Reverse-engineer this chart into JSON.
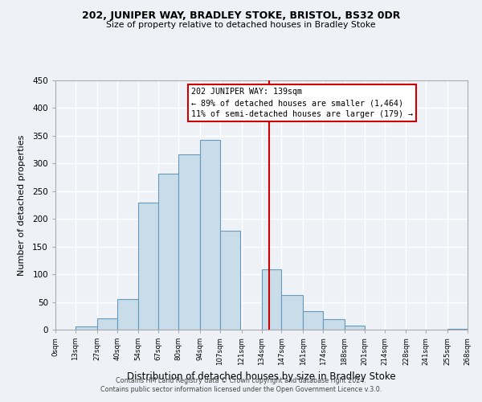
{
  "title1": "202, JUNIPER WAY, BRADLEY STOKE, BRISTOL, BS32 0DR",
  "title2": "Size of property relative to detached houses in Bradley Stoke",
  "xlabel": "Distribution of detached houses by size in Bradley Stoke",
  "ylabel": "Number of detached properties",
  "footer1": "Contains HM Land Registry data © Crown copyright and database right 2024.",
  "footer2": "Contains public sector information licensed under the Open Government Licence v.3.0.",
  "bar_left_edges": [
    0,
    13,
    27,
    40,
    54,
    67,
    80,
    94,
    107,
    121,
    134,
    147,
    161,
    174,
    188,
    201,
    214,
    228,
    241,
    255
  ],
  "bar_heights": [
    0,
    6,
    21,
    55,
    230,
    281,
    317,
    342,
    178,
    0,
    109,
    62,
    33,
    19,
    7,
    0,
    0,
    0,
    0,
    2
  ],
  "bar_widths": [
    13,
    14,
    13,
    14,
    13,
    13,
    14,
    13,
    13,
    13,
    13,
    14,
    13,
    14,
    13,
    13,
    14,
    13,
    14,
    13
  ],
  "bar_color": "#c8dcea",
  "bar_edgecolor": "#6699bb",
  "vline_x": 139,
  "vline_color": "#cc0000",
  "annotation_title": "202 JUNIPER WAY: 139sqm",
  "annotation_line1": "← 89% of detached houses are smaller (1,464)",
  "annotation_line2": "11% of semi-detached houses are larger (179) →",
  "xlim": [
    0,
    268
  ],
  "ylim": [
    0,
    450
  ],
  "xtick_positions": [
    0,
    13,
    27,
    40,
    54,
    67,
    80,
    94,
    107,
    121,
    134,
    147,
    161,
    174,
    188,
    201,
    214,
    228,
    241,
    255,
    268
  ],
  "xtick_labels": [
    "0sqm",
    "13sqm",
    "27sqm",
    "40sqm",
    "54sqm",
    "67sqm",
    "80sqm",
    "94sqm",
    "107sqm",
    "121sqm",
    "134sqm",
    "147sqm",
    "161sqm",
    "174sqm",
    "188sqm",
    "201sqm",
    "214sqm",
    "228sqm",
    "241sqm",
    "255sqm",
    "268sqm"
  ],
  "ytick_positions": [
    0,
    50,
    100,
    150,
    200,
    250,
    300,
    350,
    400,
    450
  ],
  "bg_color": "#eef2f7",
  "grid_color": "#ffffff",
  "plot_area_bg": "#dce8f0"
}
